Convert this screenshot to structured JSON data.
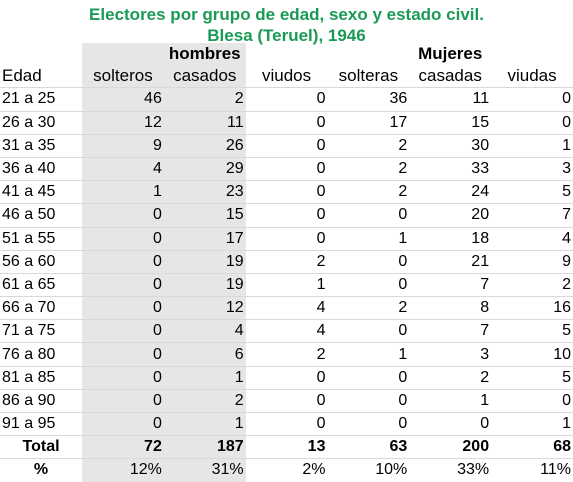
{
  "title": {
    "line1": "Electores por grupo de edad, sexo y estado civil.",
    "line2": "Blesa (Teruel), 1946"
  },
  "table": {
    "groups": {
      "hombres": "hombres",
      "mujeres": "Mujeres"
    },
    "row_header": "Edad",
    "columns": [
      "solteros",
      "casados",
      "viudos",
      "solteras",
      "casadas",
      "viudas"
    ],
    "rows": [
      {
        "edad": "21 a 25",
        "values": [
          "46",
          "2",
          "0",
          "36",
          "11",
          "0"
        ]
      },
      {
        "edad": "26 a 30",
        "values": [
          "12",
          "11",
          "0",
          "17",
          "15",
          "0"
        ]
      },
      {
        "edad": "31 a 35",
        "values": [
          "9",
          "26",
          "0",
          "2",
          "30",
          "1"
        ]
      },
      {
        "edad": "36 a 40",
        "values": [
          "4",
          "29",
          "0",
          "2",
          "33",
          "3"
        ]
      },
      {
        "edad": "41 a 45",
        "values": [
          "1",
          "23",
          "0",
          "2",
          "24",
          "5"
        ]
      },
      {
        "edad": "46 a 50",
        "values": [
          "0",
          "15",
          "0",
          "0",
          "20",
          "7"
        ]
      },
      {
        "edad": "51 a 55",
        "values": [
          "0",
          "17",
          "0",
          "1",
          "18",
          "4"
        ]
      },
      {
        "edad": "56 a 60",
        "values": [
          "0",
          "19",
          "2",
          "0",
          "21",
          "9"
        ]
      },
      {
        "edad": "61 a 65",
        "values": [
          "0",
          "19",
          "1",
          "0",
          "7",
          "2"
        ]
      },
      {
        "edad": "66 a 70",
        "values": [
          "0",
          "12",
          "4",
          "2",
          "8",
          "16"
        ]
      },
      {
        "edad": "71 a 75",
        "values": [
          "0",
          "4",
          "4",
          "0",
          "7",
          "5"
        ]
      },
      {
        "edad": "76 a 80",
        "values": [
          "0",
          "6",
          "2",
          "1",
          "3",
          "10"
        ]
      },
      {
        "edad": "81 a 85",
        "values": [
          "0",
          "1",
          "0",
          "0",
          "2",
          "5"
        ]
      },
      {
        "edad": "86 a 90",
        "values": [
          "0",
          "2",
          "0",
          "0",
          "1",
          "0"
        ]
      },
      {
        "edad": "91 a 95",
        "values": [
          "0",
          "1",
          "0",
          "0",
          "0",
          "1"
        ]
      }
    ],
    "total": {
      "label": "Total",
      "values": [
        "72",
        "187",
        "13",
        "63",
        "200",
        "68"
      ]
    },
    "percent": {
      "label": "%",
      "values": [
        "12%",
        "31%",
        "2%",
        "10%",
        "33%",
        "11%"
      ]
    }
  },
  "colors": {
    "title": "#1a9a55",
    "shade": "#e6e6e6"
  }
}
